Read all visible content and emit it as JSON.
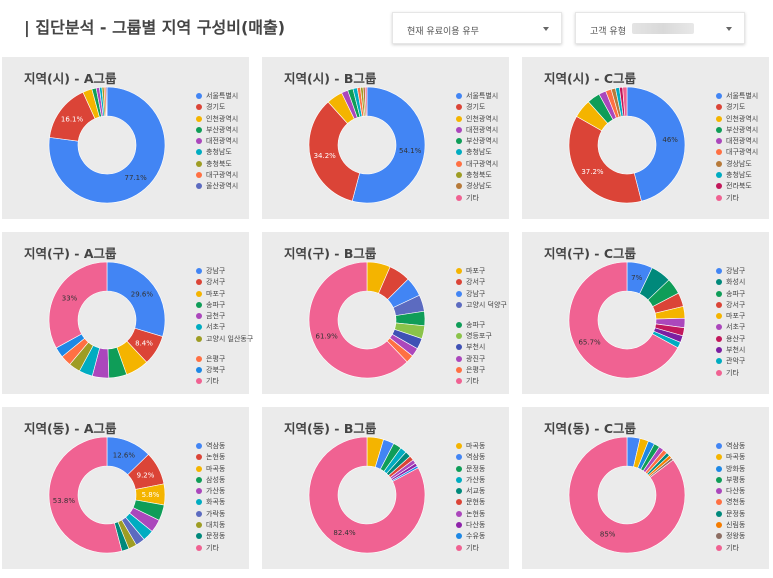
{
  "header": {
    "title": "| 집단분석 - 그룹별 지역 구성비(매출)",
    "filter1_label": "현재 유료이용 유무",
    "filter2_label": "고객 유형"
  },
  "chart_data": [
    {
      "type": "pie",
      "title": "지역(시) - A그룹",
      "labels": [
        "서울특별시",
        "경기도",
        "인천광역시",
        "부산광역시",
        "대전광역시",
        "충청남도",
        "충청북도",
        "대구광역시",
        "울산광역시"
      ],
      "values": [
        77.1,
        16.1,
        2.6,
        1.2,
        0.9,
        0.7,
        0.6,
        0.5,
        0.3
      ],
      "data_labels": [
        "77.1%",
        "16.1%",
        "",
        "",
        "",
        "",
        "",
        "",
        ""
      ]
    },
    {
      "type": "pie",
      "title": "지역(시) - B그룹",
      "labels": [
        "서울특별시",
        "경기도",
        "인천광역시",
        "대전광역시",
        "부산광역시",
        "충청남도",
        "대구광역시",
        "충청북도",
        "경상남도",
        "기타"
      ],
      "values": [
        54.1,
        34.2,
        4.5,
        1.8,
        1.5,
        1.2,
        0.9,
        0.7,
        0.6,
        0.5
      ],
      "data_labels": [
        "54.1%",
        "34.2%",
        "",
        "",
        "",
        "",
        "",
        "",
        "",
        ""
      ]
    },
    {
      "type": "pie",
      "title": "지역(시) - C그룹",
      "labels": [
        "서울특별시",
        "경기도",
        "인천광역시",
        "부산광역시",
        "대전광역시",
        "대구광역시",
        "경상남도",
        "충청남도",
        "전라북도",
        "기타"
      ],
      "values": [
        46,
        37.2,
        5.2,
        3.6,
        2.0,
        1.6,
        1.2,
        1.1,
        0.9,
        1.2
      ],
      "data_labels": [
        "46%",
        "37.2%",
        "",
        "",
        "",
        "",
        "",
        "",
        "",
        ""
      ]
    },
    {
      "type": "pie",
      "title": "지역(구) - A그룹",
      "labels": [
        "강남구",
        "강서구",
        "마포구",
        "송파구",
        "금천구",
        "서초구",
        "고양시 일산동구",
        "은평구",
        "강북구",
        "기타"
      ],
      "values": [
        29.6,
        8.4,
        6.5,
        5.0,
        4.6,
        3.8,
        3.2,
        3.0,
        2.9,
        33
      ],
      "data_labels": [
        "29.6%",
        "8.4%",
        "",
        "",
        "",
        "",
        "",
        "",
        "",
        "33%"
      ]
    },
    {
      "type": "pie",
      "title": "지역(구) - B그룹",
      "labels": [
        "마포구",
        "강서구",
        "강남구",
        "고양시 덕양구",
        "송파구",
        "영등포구",
        "부천시",
        "광진구",
        "은평구",
        "기타"
      ],
      "values": [
        6.5,
        6.0,
        5.4,
        4.6,
        4.0,
        3.6,
        3.0,
        2.4,
        2.2,
        61.9
      ],
      "data_labels": [
        "",
        "",
        "",
        "",
        "",
        "",
        "",
        "",
        "",
        "61.9%"
      ]
    },
    {
      "type": "pie",
      "title": "지역(구) - C그룹",
      "labels": [
        "강남구",
        "화성시",
        "송파구",
        "강서구",
        "마포구",
        "서초구",
        "용산구",
        "부천시",
        "관악구",
        "기타"
      ],
      "values": [
        7,
        5.6,
        4.4,
        3.8,
        3.2,
        2.6,
        2.2,
        1.9,
        1.6,
        65.7
      ],
      "data_labels": [
        "7%",
        "",
        "",
        "",
        "",
        "",
        "",
        "",
        "",
        "65.7%"
      ]
    },
    {
      "type": "pie",
      "title": "지역(동) - A그룹",
      "labels": [
        "역삼동",
        "논현동",
        "마곡동",
        "삼성동",
        "가산동",
        "화곡동",
        "가락동",
        "대치동",
        "문정동",
        "기타"
      ],
      "values": [
        12.6,
        9.2,
        5.8,
        4.4,
        3.6,
        3.1,
        2.6,
        2.3,
        2.0,
        53.8
      ],
      "data_labels": [
        "12.6%",
        "9.2%",
        "5.8%",
        "",
        "",
        "",
        "",
        "",
        "",
        "53.8%"
      ]
    },
    {
      "type": "pie",
      "title": "지역(동) - B그룹",
      "labels": [
        "마곡동",
        "역삼동",
        "문정동",
        "가산동",
        "서교동",
        "문현동",
        "논현동",
        "다산동",
        "수유동",
        "기타"
      ],
      "values": [
        4.6,
        3.0,
        2.3,
        1.8,
        1.6,
        1.3,
        1.1,
        0.9,
        0.6,
        82.4
      ],
      "data_labels": [
        "",
        "",
        "",
        "",
        "",
        "",
        "",
        "",
        "",
        "82.4%"
      ]
    },
    {
      "type": "pie",
      "title": "지역(동) - C그룹",
      "labels": [
        "역삼동",
        "마곡동",
        "방화동",
        "부평동",
        "다산동",
        "영천동",
        "문정동",
        "신림동",
        "정왕동",
        "기타"
      ],
      "values": [
        3.6,
        2.4,
        1.8,
        1.6,
        1.4,
        1.2,
        1.0,
        0.9,
        0.7,
        85
      ],
      "data_labels": [
        "",
        "",
        "",
        "",
        "",
        "",
        "",
        "",
        "",
        "85%"
      ]
    }
  ],
  "palettes": {
    "series": [
      "#4285f4",
      "#db4437",
      "#f4b400",
      "#0f9d58",
      "#ab47bc",
      "#00acc1",
      "#9e9d24",
      "#ff7043",
      "#5c6bc0",
      "#f06292"
    ],
    "city_b": [
      "#4285f4",
      "#db4437",
      "#f4b400",
      "#ab47bc",
      "#0f9d58",
      "#00acc1",
      "#ff7043",
      "#9e9d24",
      "#b77a3a",
      "#f06292"
    ],
    "city_c": [
      "#4285f4",
      "#db4437",
      "#f4b400",
      "#0f9d58",
      "#ab47bc",
      "#ff7043",
      "#b77a3a",
      "#00acc1",
      "#c2185b",
      "#f06292"
    ],
    "dist_a": [
      "#4285f4",
      "#db4437",
      "#f4b400",
      "#0f9d58",
      "#ab47bc",
      "#00acc1",
      "#9e9d24",
      "#ff7043",
      "#1e88e5",
      "#f06292"
    ],
    "dist_b": [
      "#f4b400",
      "#db4437",
      "#4285f4",
      "#5c6bc0",
      "#0f9d58",
      "#8bc34a",
      "#3f51b5",
      "#ab47bc",
      "#ff7043",
      "#f06292"
    ],
    "dist_c": [
      "#4285f4",
      "#00897b",
      "#0f9d58",
      "#db4437",
      "#f4b400",
      "#ab47bc",
      "#c2185b",
      "#7b1fa2",
      "#00acc1",
      "#f06292"
    ],
    "dong_a": [
      "#4285f4",
      "#db4437",
      "#f4b400",
      "#0f9d58",
      "#ab47bc",
      "#00acc1",
      "#5c6bc0",
      "#9e9d24",
      "#00897b",
      "#f06292"
    ],
    "dong_b": [
      "#f4b400",
      "#4285f4",
      "#0f9d58",
      "#00acc1",
      "#00897b",
      "#db4437",
      "#ab47bc",
      "#8e24aa",
      "#1e88e5",
      "#f06292"
    ],
    "dong_c": [
      "#4285f4",
      "#f4b400",
      "#1e88e5",
      "#0f9d58",
      "#ab47bc",
      "#ff7043",
      "#00897b",
      "#f57c00",
      "#8d6e63",
      "#f06292"
    ]
  }
}
